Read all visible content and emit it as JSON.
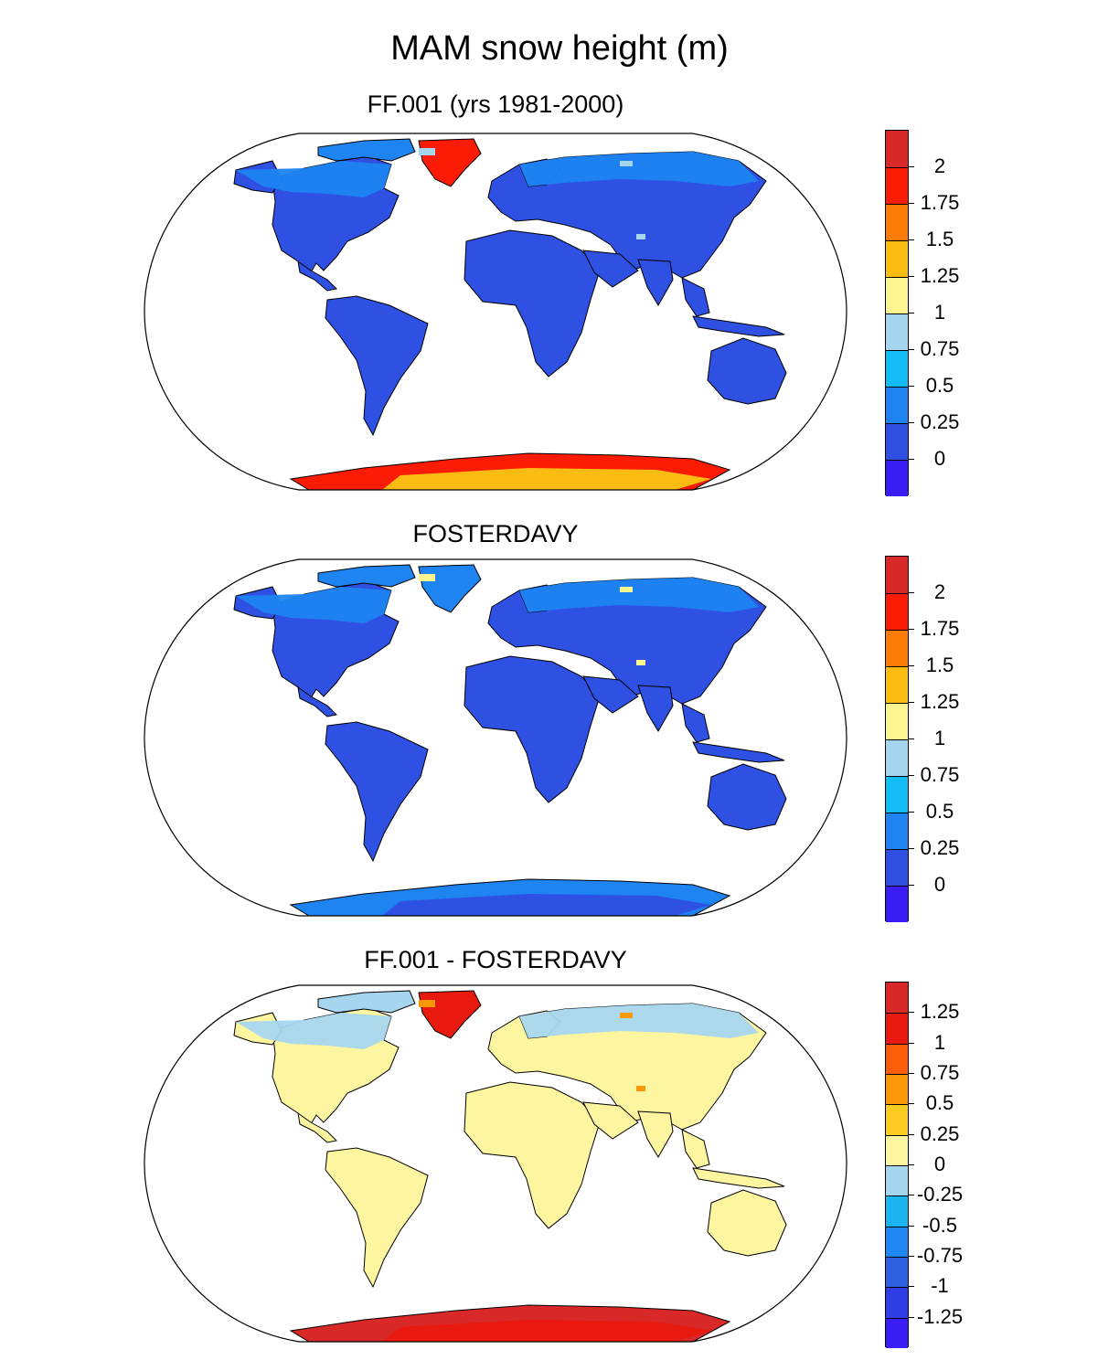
{
  "figure": {
    "title": "MAM snow height (m)"
  },
  "palettes": {
    "snow": [
      "#3a1cf5",
      "#2e50e3",
      "#1e84f2",
      "#12bcf7",
      "#a6d6ef",
      "#fdf58f",
      "#fdbc12",
      "#fc7c06",
      "#fc1c06",
      "#d82828"
    ],
    "diff": [
      "#3a1cf5",
      "#2e3de6",
      "#2e62e3",
      "#1e87f2",
      "#1cb4f2",
      "#a6d6ef",
      "#fdf5a0",
      "#fdcc20",
      "#fc9806",
      "#fc5c06",
      "#e8190e",
      "#d82828"
    ]
  },
  "panels": [
    {
      "title": "FF.001 (yrs 1981-2000)",
      "colorbar_labels": [
        "2",
        "1.75",
        "1.5",
        "1.25",
        "1",
        "0.75",
        "0.5",
        "0.25",
        "0"
      ],
      "colors": {
        "land": "#2e50e3",
        "north_snow": "#1e84f2",
        "greenland": "#fc1c06",
        "antarctica": "#fc1c06",
        "antarctica_alt": "#fdbc12",
        "highlight": "#a6d6ef"
      }
    },
    {
      "title": "FOSTERDAVY",
      "colorbar_labels": [
        "2",
        "1.75",
        "1.5",
        "1.25",
        "1",
        "0.75",
        "0.5",
        "0.25",
        "0"
      ],
      "colors": {
        "land": "#2e50e3",
        "north_snow": "#1e84f2",
        "greenland": "#1e84f2",
        "antarctica": "#1e84f2",
        "antarctica_alt": "#2e50e3",
        "highlight": "#fdf58f"
      }
    },
    {
      "title": "FF.001 - FOSTERDAVY",
      "colorbar_labels": [
        "1.25",
        "1",
        "0.75",
        "0.5",
        "0.25",
        "0",
        "-0.25",
        "-0.5",
        "-0.75",
        "-1",
        "-1.25"
      ],
      "colors": {
        "land": "#fdf5a0",
        "north_snow": "#a6d6ef",
        "greenland": "#e8190e",
        "antarctica": "#d82828",
        "antarctica_alt": "#e8190e",
        "highlight": "#fc9806"
      }
    }
  ]
}
